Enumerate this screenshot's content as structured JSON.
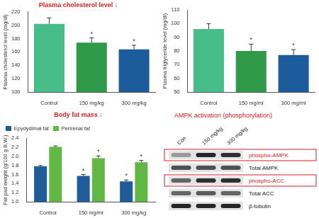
{
  "chart_data": [
    {
      "type": "bar",
      "title": "Plasma cholesterol level ↓",
      "y_label": "Plasma cholesterol level (mg/dl)",
      "categories": [
        "Control",
        "150 mg/kg",
        "300 mg/kg"
      ],
      "values": [
        202,
        174,
        164
      ],
      "errors": [
        9,
        7,
        6
      ],
      "significance": [
        null,
        "*",
        "*"
      ],
      "colors": [
        "#47bd8a",
        "#2e9a4a",
        "#1d5c9c"
      ],
      "ylim": [
        100,
        220
      ],
      "yticks": [
        100,
        120,
        140,
        160,
        180,
        200,
        220
      ],
      "grid": false
    },
    {
      "type": "bar",
      "y_label": "Plasma triglyceride level (mg/dl)",
      "categories": [
        "Control",
        "150 mg/ml",
        "300 mg/ml"
      ],
      "values": [
        96,
        80,
        77
      ],
      "errors": [
        4,
        5,
        4
      ],
      "significance": [
        null,
        "*",
        "*"
      ],
      "colors": [
        "#47bd8a",
        "#2e9a4a",
        "#1d5c9c"
      ],
      "ylim": [
        50,
        110
      ],
      "yticks": [
        50,
        60,
        70,
        80,
        90,
        100,
        110
      ],
      "grid": false
    },
    {
      "type": "bar",
      "title": "Body fat mass ↓",
      "y_label": "Fat pad weight (g/100 g B.W.)",
      "categories": [
        "Control",
        "150 mg/ml",
        "300 mg/kg"
      ],
      "series": [
        {
          "name": "Epydydimal fat",
          "color": "#1f5c99",
          "values": [
            1.78,
            1.57,
            1.45
          ],
          "errors": [
            0.02,
            0.03,
            0.03
          ],
          "significance": [
            null,
            "*",
            "*"
          ]
        },
        {
          "name": "Perirenal fat",
          "color": "#62b845",
          "values": [
            2.21,
            1.96,
            1.87
          ],
          "errors": [
            0.02,
            0.05,
            0.04
          ],
          "significance": [
            null,
            "*",
            "*"
          ]
        }
      ],
      "legend": "top-left",
      "ylim": [
        1.0,
        2.4
      ],
      "yticks": [
        {
          "value": 1,
          "label": "1.0"
        },
        1.2,
        1.4,
        1.6,
        1.8,
        {
          "value": 2,
          "label": "2.0"
        },
        2.2,
        2.4
      ],
      "grid": false
    }
  ],
  "blot": {
    "title": "AMPK activation (phosphorylation)",
    "lanes": [
      "Con",
      "150 mg/kg",
      "300 mg/kg"
    ],
    "rows": [
      {
        "label": "phospho-AMPK",
        "color": "#d42020",
        "bands": [
          0.35,
          0.9,
          0.85
        ]
      },
      {
        "label": "Total AMPK",
        "bands": [
          0.7,
          0.7,
          0.7
        ]
      },
      {
        "label": "phospho-ACC",
        "color": "#d42020",
        "bands": [
          0.6,
          0.85,
          0.85
        ]
      },
      {
        "label": "Total ACC",
        "bands": [
          0.6,
          0.65,
          0.6
        ]
      },
      {
        "label": "β-tubulin",
        "bands": [
          0.9,
          0.9,
          0.9
        ]
      }
    ]
  }
}
